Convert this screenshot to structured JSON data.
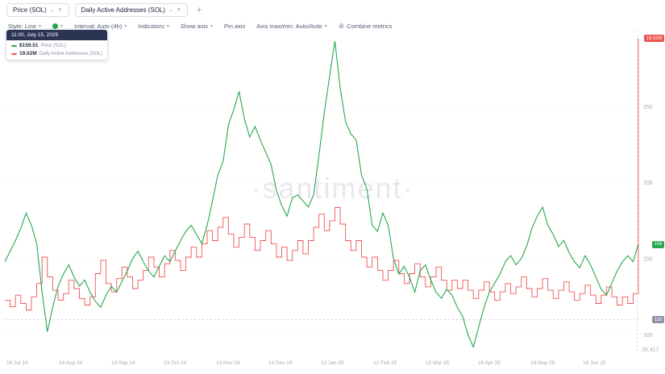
{
  "header": {
    "tabs": [
      {
        "label": "Price (SOL)"
      },
      {
        "label": "Daily Active Addresses (SOL)"
      }
    ],
    "add_label": "+"
  },
  "toolbar": {
    "style_label": "Style: Line",
    "color_dot": "#26a94d",
    "interval_label": "Interval: Auto (4h)",
    "indicators_label": "Indicators",
    "show_axis_label": "Show axis",
    "pin_axis_label": "Pin axis",
    "axis_maxmin_label": "Axis max/min: Auto/Auto",
    "combine_metrics_label": "Combine metrics"
  },
  "tooltip": {
    "timestamp": "11:00, July 15, 2025",
    "rows": [
      {
        "value": "$159.51",
        "label": "Price (SOL)",
        "color": "#26a94d"
      },
      {
        "value": "19.02M",
        "label": "Daily Active Addresses (SOL)",
        "color": "#ef5350"
      }
    ]
  },
  "watermark": "·santiment·",
  "axes": {
    "x_labels": [
      "16 Jul 24",
      "14 Aug 24",
      "13 Sep 24",
      "13 Oct 24",
      "13 Nov 24",
      "14 Dec 24",
      "13 Jan 25",
      "12 Feb 25",
      "15 Mar 25",
      "16 Apr 25",
      "19 May 25",
      "16 Jun 25"
    ],
    "y_right_bottom": "26,417",
    "crosshair_price_value": 110,
    "badges": [
      {
        "text": "19.02M",
        "color": "#ef5350",
        "metric": "daa",
        "value": 19.02
      },
      {
        "text": "159",
        "color": "#26a94d",
        "metric": "price",
        "value": 159.51
      },
      {
        "text": "110",
        "color": "#8a93a6",
        "metric": "price",
        "value": 110
      }
    ]
  },
  "chart_data": {
    "type": "line",
    "title": "SOL Price vs Daily Active Addresses",
    "x_range": [
      "16 Jul 24",
      "15 Jul 25"
    ],
    "price_axis": {
      "min": 88,
      "max": 300,
      "ticks": [
        250,
        200,
        150,
        100
      ]
    },
    "daa_axis": {
      "min": 0,
      "max": 19.5,
      "unit": "M"
    },
    "series": [
      {
        "name": "Price (SOL)",
        "color": "#26a94d",
        "axis": "price",
        "style": "line",
        "values": [
          148,
          155,
          162,
          170,
          180,
          172,
          160,
          128,
          102,
          118,
          132,
          140,
          146,
          138,
          132,
          136,
          128,
          122,
          118,
          126,
          132,
          128,
          135,
          142,
          150,
          155,
          148,
          142,
          138,
          145,
          152,
          148,
          155,
          162,
          168,
          172,
          166,
          160,
          172,
          188,
          205,
          214,
          238,
          248,
          260,
          242,
          230,
          237,
          228,
          220,
          212,
          195,
          185,
          178,
          190,
          192,
          188,
          184,
          192,
          218,
          246,
          270,
          293,
          262,
          240,
          232,
          228,
          205,
          196,
          172,
          168,
          180,
          172,
          150,
          140,
          145,
          138,
          128,
          142,
          146,
          136,
          128,
          124,
          130,
          126,
          118,
          112,
          100,
          92,
          105,
          118,
          128,
          134,
          140,
          148,
          152,
          146,
          150,
          158,
          170,
          178,
          184,
          172,
          166,
          158,
          162,
          154,
          148,
          144,
          152,
          146,
          138,
          130,
          126,
          134,
          142,
          148,
          152,
          148,
          159.51
        ]
      },
      {
        "name": "Daily Active Addresses (SOL)",
        "color": "#ef5350",
        "axis": "daa",
        "style": "step",
        "values": [
          3.2,
          2.8,
          3.5,
          3.0,
          2.6,
          3.4,
          4.2,
          5.8,
          4.6,
          3.8,
          3.2,
          3.6,
          4.4,
          3.9,
          3.3,
          2.9,
          3.4,
          4.8,
          5.6,
          4.2,
          3.7,
          4.5,
          5.2,
          4.6,
          3.9,
          4.4,
          5.0,
          5.8,
          5.2,
          4.6,
          5.4,
          6.2,
          5.6,
          5.0,
          5.8,
          6.4,
          5.8,
          6.6,
          7.4,
          6.8,
          7.6,
          8.2,
          7.2,
          6.4,
          7.0,
          7.8,
          7.0,
          6.2,
          6.8,
          7.4,
          6.6,
          5.8,
          6.4,
          5.6,
          6.2,
          6.8,
          6.0,
          6.8,
          7.6,
          8.4,
          7.4,
          8.0,
          8.8,
          7.8,
          6.8,
          6.2,
          6.8,
          5.8,
          5.2,
          5.8,
          5.0,
          4.4,
          5.0,
          5.6,
          4.8,
          4.2,
          4.8,
          5.4,
          4.6,
          4.0,
          4.6,
          5.2,
          4.4,
          3.8,
          4.4,
          3.9,
          4.4,
          3.8,
          3.3,
          3.8,
          4.3,
          3.7,
          3.2,
          3.7,
          4.2,
          3.6,
          4.0,
          4.6,
          3.9,
          3.4,
          3.9,
          4.5,
          3.8,
          3.3,
          3.8,
          4.3,
          3.7,
          3.2,
          3.6,
          4.1,
          3.5,
          3.0,
          3.5,
          4.0,
          3.4,
          2.9,
          3.4,
          3.0,
          3.6,
          19.02
        ]
      }
    ]
  }
}
